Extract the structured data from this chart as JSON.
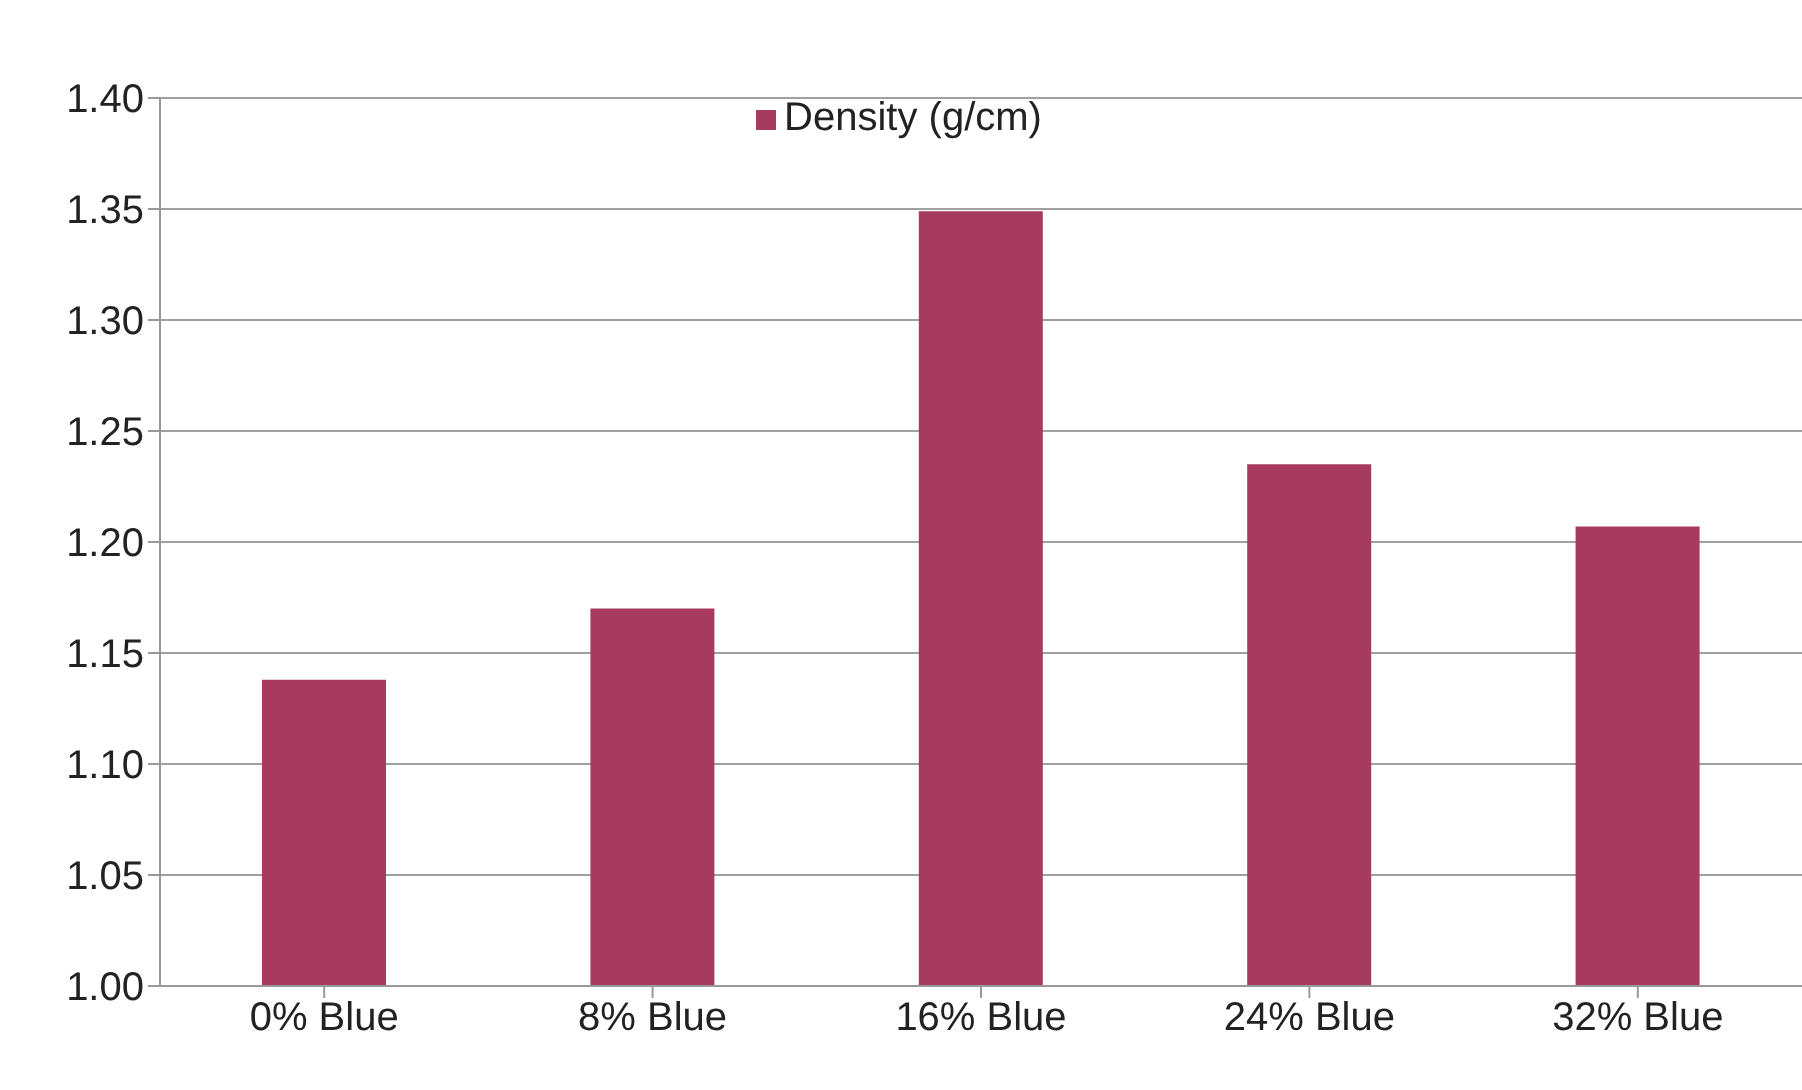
{
  "chart_data": {
    "type": "bar",
    "categories": [
      "0% Blue",
      "8% Blue",
      "16% Blue",
      "24% Blue",
      "32% Blue"
    ],
    "series": [
      {
        "name": "Density (g/cm)",
        "color": "#a63a5f",
        "values": [
          1.138,
          1.17,
          1.349,
          1.235,
          1.207
        ]
      }
    ],
    "ylim": [
      1.0,
      1.4
    ],
    "yticks": [
      {
        "value": 1.0,
        "label": "1.00"
      },
      {
        "value": 1.05,
        "label": "1.05"
      },
      {
        "value": 1.1,
        "label": "1.10"
      },
      {
        "value": 1.15,
        "label": "1.15"
      },
      {
        "value": 1.2,
        "label": "1.20"
      },
      {
        "value": 1.25,
        "label": "1.25"
      },
      {
        "value": 1.3,
        "label": "1.30"
      },
      {
        "value": 1.35,
        "label": "1.35"
      },
      {
        "value": 1.4,
        "label": "1.40"
      }
    ],
    "grid": "y",
    "legend": "top"
  }
}
